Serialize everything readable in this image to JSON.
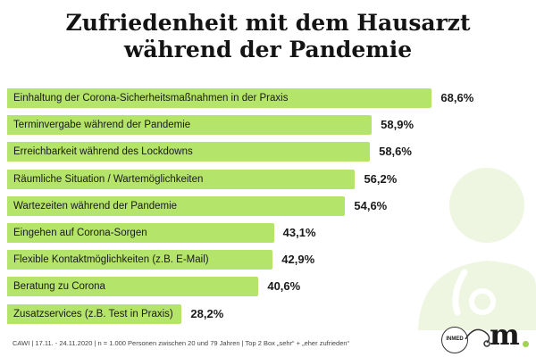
{
  "title_line1": "Zufriedenheit mit dem Hausarzt",
  "title_line2": "während der Pandemie",
  "footnote": "CAWI | 17.11. - 24.11.2020 | n = 1.000 Personen zwischen 20 und 79 Jahren | Top 2 Box „sehr“ + „eher zufrieden“",
  "badge_text": "INMED",
  "brand": "m",
  "colors": {
    "bar": "#b5e46b",
    "decoration": "#eef6e2",
    "brand_dot": "#9ed24f"
  },
  "chart_data": {
    "type": "bar",
    "orientation": "horizontal",
    "title": "Zufriedenheit mit dem Hausarzt während der Pandemie",
    "unit": "%",
    "categories": [
      "Einhaltung der Corona-Sicherheitsmaßnahmen in der Praxis",
      "Terminvergabe während der Pandemie",
      "Erreichbarkeit während des Lockdowns",
      "Räumliche Situation / Wartemöglichkeiten",
      "Wartezeiten während der Pandemie",
      "Eingehen auf Corona-Sorgen",
      "Flexible Kontaktmöglichkeiten (z.B. E-Mail)",
      "Beratung zu Corona",
      "Zusatzservices (z.B. Test in Praxis)"
    ],
    "values": [
      68.6,
      58.9,
      58.6,
      56.2,
      54.6,
      43.1,
      42.9,
      40.6,
      28.2
    ],
    "value_labels": [
      "68,6%",
      "58,9%",
      "58,6%",
      "56,2%",
      "54,6%",
      "43,1%",
      "42,9%",
      "40,6%",
      "28,2%"
    ]
  }
}
